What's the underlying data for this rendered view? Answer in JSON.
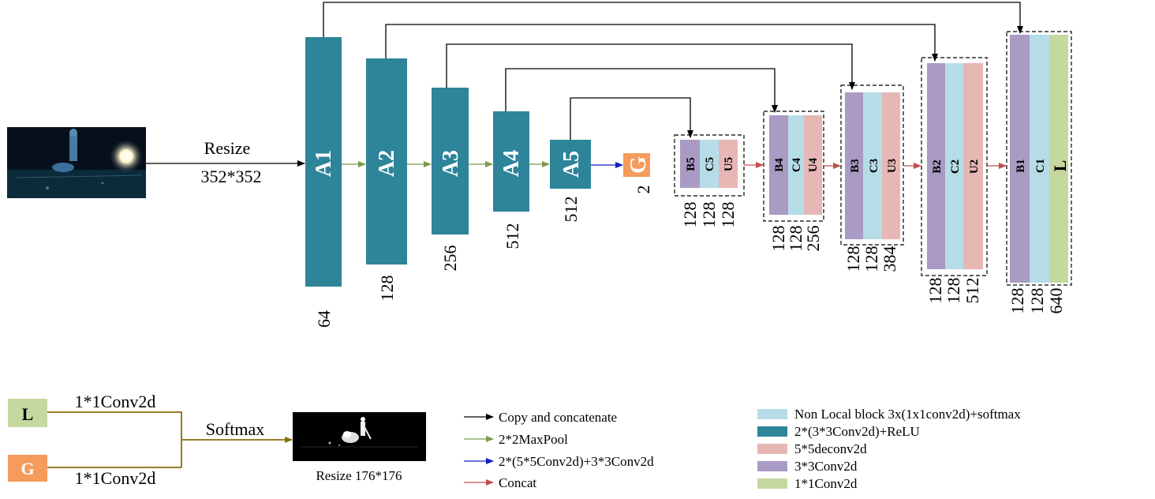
{
  "colors": {
    "teal": "#2e8499",
    "orange": "#f59b5b",
    "purple": "#a99bc4",
    "lightblue": "#b6dde7",
    "pink": "#e6b7b4",
    "green": "#c4d8a0",
    "arrow_green": "#7a9a4a",
    "arrow_blue": "#1020c0",
    "arrow_red": "#c0504d",
    "olive": "#8a6d0b"
  },
  "input": {
    "resize_label": "Resize",
    "size_label": "352*352"
  },
  "encoder": [
    {
      "name": "A1",
      "channels": "64"
    },
    {
      "name": "A2",
      "channels": "128"
    },
    {
      "name": "A3",
      "channels": "256"
    },
    {
      "name": "A4",
      "channels": "512"
    },
    {
      "name": "A5",
      "channels": "512"
    }
  ],
  "global_block": {
    "name": "G",
    "channels": "2"
  },
  "decoder": [
    {
      "labels": [
        "B5",
        "C5",
        "U5"
      ],
      "channels": [
        "128",
        "128",
        "128"
      ]
    },
    {
      "labels": [
        "B4",
        "C4",
        "U4"
      ],
      "channels": [
        "128",
        "128",
        "256"
      ]
    },
    {
      "labels": [
        "B3",
        "C3",
        "U3"
      ],
      "channels": [
        "128",
        "128",
        "384"
      ]
    },
    {
      "labels": [
        "B2",
        "C2",
        "U2"
      ],
      "channels": [
        "128",
        "128",
        "512"
      ]
    },
    {
      "labels": [
        "B1",
        "C1",
        "L"
      ],
      "channels": [
        "128",
        "128",
        "640"
      ]
    }
  ],
  "fusion": {
    "l_label": "L",
    "g_label": "G",
    "conv_top": "1*1Conv2d",
    "conv_bottom": "1*1Conv2d",
    "softmax": "Softmax",
    "output_caption": "Resize 176*176"
  },
  "legend_arrows": [
    {
      "text": "Copy and concatenate",
      "color": "#000000"
    },
    {
      "text": "2*2MaxPool",
      "color": "#7a9a4a"
    },
    {
      "text": "2*(5*5Conv2d)+3*3Conv2d",
      "color": "#1020c0"
    },
    {
      "text": "Concat",
      "color": "#c0504d"
    }
  ],
  "legend_boxes": [
    {
      "text": "Non  Local  block 3x(1x1conv2d)+softmax",
      "color": "#b6dde7"
    },
    {
      "text": "2*(3*3Conv2d)+ReLU",
      "color": "#2e8499"
    },
    {
      "text": "5*5deconv2d",
      "color": "#e6b7b4"
    },
    {
      "text": "3*3Conv2d",
      "color": "#a99bc4"
    },
    {
      "text": "1*1Conv2d",
      "color": "#c4d8a0"
    }
  ]
}
